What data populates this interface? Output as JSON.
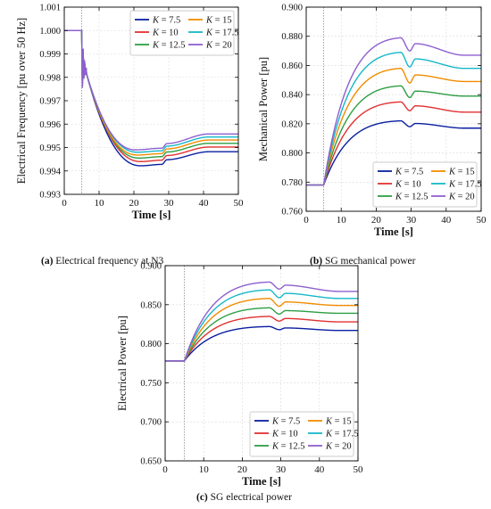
{
  "palette": [
    "#0a1fa0",
    "#e03131",
    "#2f9e44",
    "#f08c00",
    "#15b8c8",
    "#8e5fd0"
  ],
  "captions": {
    "a_letter": "(a)",
    "a_text": " Electrical frequency at N3",
    "b_letter": "(b)",
    "b_text": " SG mechanical power",
    "c_letter": "(c)",
    "c_text": " SG electrical power"
  },
  "chart_data": [
    {
      "id": "a",
      "type": "line",
      "title": "",
      "xlabel": "Time [s]",
      "ylabel": "Electrical Frequency [pu over 50 Hz]",
      "xlim": [
        0,
        50
      ],
      "ylim": [
        0.993,
        1.001
      ],
      "xticks": [
        "0",
        "10",
        "20",
        "30",
        "40",
        "50"
      ],
      "yticks": [
        "0.993",
        "0.994",
        "0.995",
        "0.996",
        "0.997",
        "0.998",
        "0.999",
        "1.000",
        "1.001"
      ],
      "event_line_x": 5,
      "grid": true,
      "legend": {
        "placement": "top-right",
        "columns": 2
      },
      "series": [
        {
          "name": "K = 7.5",
          "start": 1.0,
          "min": 0.99422,
          "t_min": 22,
          "pre_step": 0.99428,
          "step": 0.0002,
          "final": 0.99482
        },
        {
          "name": "K = 10",
          "start": 1.0,
          "min": 0.9944,
          "t_min": 22,
          "pre_step": 0.99446,
          "step": 0.0002,
          "final": 0.99502
        },
        {
          "name": "K = 12.5",
          "start": 1.0,
          "min": 0.99455,
          "t_min": 21.5,
          "pre_step": 0.99461,
          "step": 0.0002,
          "final": 0.99518
        },
        {
          "name": "K = 15",
          "start": 1.0,
          "min": 0.99468,
          "t_min": 21,
          "pre_step": 0.99474,
          "step": 0.0002,
          "final": 0.99532
        },
        {
          "name": "K = 17.5",
          "start": 1.0,
          "min": 0.9948,
          "t_min": 21,
          "pre_step": 0.99486,
          "step": 0.0002,
          "final": 0.99545
        },
        {
          "name": "K = 20",
          "start": 1.0,
          "min": 0.9949,
          "t_min": 20.5,
          "pre_step": 0.99497,
          "step": 0.0002,
          "final": 0.99558
        }
      ]
    },
    {
      "id": "b",
      "type": "line",
      "title": "",
      "xlabel": "Time [s]",
      "ylabel": "Mechanical Power [pu]",
      "xlim": [
        0,
        50
      ],
      "ylim": [
        0.76,
        0.9
      ],
      "xticks": [
        "0",
        "10",
        "20",
        "30",
        "40",
        "50"
      ],
      "yticks": [
        "0.760",
        "0.780",
        "0.800",
        "0.820",
        "0.840",
        "0.860",
        "0.880",
        "0.900"
      ],
      "event_line_x": 5,
      "grid": true,
      "legend": {
        "placement": "bottom-right",
        "columns": 2
      },
      "series": [
        {
          "name": "K = 7.5",
          "start": 0.778,
          "peak": 0.822,
          "dip": 0.818,
          "final": 0.817
        },
        {
          "name": "K = 10",
          "start": 0.778,
          "peak": 0.835,
          "dip": 0.829,
          "final": 0.828
        },
        {
          "name": "K = 12.5",
          "start": 0.778,
          "peak": 0.846,
          "dip": 0.838,
          "final": 0.839
        },
        {
          "name": "K = 15",
          "start": 0.778,
          "peak": 0.858,
          "dip": 0.848,
          "final": 0.849
        },
        {
          "name": "K = 17.5",
          "start": 0.778,
          "peak": 0.869,
          "dip": 0.859,
          "final": 0.858
        },
        {
          "name": "K = 20",
          "start": 0.778,
          "peak": 0.879,
          "dip": 0.87,
          "final": 0.867
        }
      ]
    },
    {
      "id": "c",
      "type": "line",
      "title": "",
      "xlabel": "Time [s]",
      "ylabel": "Electrical Power [pu]",
      "xlim": [
        0,
        50
      ],
      "ylim": [
        0.65,
        0.9
      ],
      "xticks": [
        "0",
        "10",
        "20",
        "30",
        "40",
        "50"
      ],
      "yticks": [
        "0.650",
        "0.700",
        "0.750",
        "0.800",
        "0.850",
        "0.900"
      ],
      "event_line_x": 5,
      "grid": true,
      "legend": {
        "placement": "bottom-right",
        "columns": 2
      },
      "series": [
        {
          "name": "K = 7.5",
          "start": 0.778,
          "peak": 0.822,
          "dip": 0.818,
          "final": 0.817
        },
        {
          "name": "K = 10",
          "start": 0.778,
          "peak": 0.835,
          "dip": 0.829,
          "final": 0.828
        },
        {
          "name": "K = 12.5",
          "start": 0.778,
          "peak": 0.846,
          "dip": 0.838,
          "final": 0.839
        },
        {
          "name": "K = 15",
          "start": 0.778,
          "peak": 0.858,
          "dip": 0.848,
          "final": 0.849
        },
        {
          "name": "K = 17.5",
          "start": 0.778,
          "peak": 0.869,
          "dip": 0.859,
          "final": 0.858
        },
        {
          "name": "K = 20",
          "start": 0.778,
          "peak": 0.879,
          "dip": 0.87,
          "final": 0.867
        }
      ]
    }
  ]
}
